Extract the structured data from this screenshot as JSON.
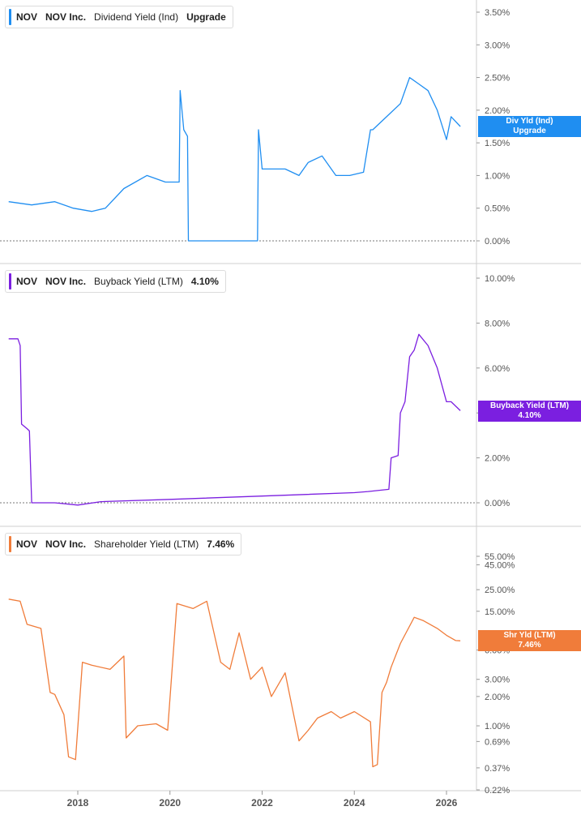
{
  "panels": [
    {
      "ticker": "NOV",
      "company": "NOV Inc.",
      "metric": "Dividend Yield (Ind)",
      "value": "Upgrade",
      "color": "#1f8ef1",
      "tag_line1": "Div Yld (Ind)",
      "tag_line2": "Upgrade"
    },
    {
      "ticker": "NOV",
      "company": "NOV Inc.",
      "metric": "Buyback Yield (LTM)",
      "value": "4.10%",
      "color": "#7b1fe0",
      "tag_line1": "Buyback Yield (LTM)",
      "tag_line2": "4.10%"
    },
    {
      "ticker": "NOV",
      "company": "NOV Inc.",
      "metric": "Shareholder Yield (LTM)",
      "value": "7.46%",
      "color": "#f07c3a",
      "tag_line1": "Shr Yld (LTM)",
      "tag_line2": "7.46%"
    }
  ],
  "x_ticks": [
    "2018",
    "2020",
    "2022",
    "2024",
    "2026"
  ],
  "chart_data": [
    {
      "type": "line",
      "title": "NOV Inc. Dividend Yield (Ind)",
      "series": [
        {
          "name": "Div Yld (Ind)",
          "color": "#1f8ef1",
          "x": [
            2016.5,
            2017.0,
            2017.5,
            2017.9,
            2018.3,
            2018.6,
            2019.0,
            2019.5,
            2019.9,
            2020.2,
            2020.22,
            2020.3,
            2020.38,
            2020.4,
            2021.9,
            2021.92,
            2022.0,
            2022.3,
            2022.5,
            2022.8,
            2023.0,
            2023.3,
            2023.6,
            2023.9,
            2024.2,
            2024.35,
            2024.4,
            2024.7,
            2025.0,
            2025.2,
            2025.4,
            2025.6,
            2025.8,
            2026.0,
            2026.1,
            2026.3
          ],
          "y": [
            0.6,
            0.55,
            0.6,
            0.5,
            0.45,
            0.5,
            0.8,
            1.0,
            0.9,
            0.9,
            2.3,
            1.7,
            1.6,
            0.0,
            0.0,
            1.7,
            1.1,
            1.1,
            1.1,
            1.0,
            1.2,
            1.3,
            1.0,
            1.0,
            1.05,
            1.7,
            1.7,
            1.9,
            2.1,
            2.5,
            2.4,
            2.3,
            2.0,
            1.55,
            1.9,
            1.75
          ]
        }
      ],
      "y_ticks": [
        "0.00%",
        "0.50%",
        "1.00%",
        "1.50%",
        "2.00%",
        "2.50%",
        "3.00%",
        "3.50%"
      ],
      "ylim": [
        0,
        3.55
      ]
    },
    {
      "type": "line",
      "title": "NOV Inc. Buyback Yield (LTM)",
      "series": [
        {
          "name": "Buyback Yield (LTM)",
          "color": "#7b1fe0",
          "x": [
            2016.5,
            2016.7,
            2016.75,
            2016.78,
            2016.9,
            2016.95,
            2017.0,
            2017.5,
            2018.0,
            2018.5,
            2020.0,
            2022.0,
            2024.0,
            2024.3,
            2024.75,
            2024.8,
            2024.95,
            2025.0,
            2025.1,
            2025.2,
            2025.3,
            2025.4,
            2025.6,
            2025.8,
            2026.0,
            2026.1,
            2026.3
          ],
          "y": [
            7.3,
            7.3,
            7.0,
            3.5,
            3.3,
            3.2,
            0.0,
            0.0,
            -0.1,
            0.05,
            0.15,
            0.3,
            0.45,
            0.5,
            0.6,
            2.0,
            2.1,
            4.0,
            4.5,
            6.5,
            6.8,
            7.5,
            7.0,
            6.0,
            4.5,
            4.5,
            4.1
          ]
        }
      ],
      "y_ticks": [
        "0.00%",
        "2.00%",
        "4.00%",
        "6.00%",
        "8.00%",
        "10.00%"
      ],
      "ylim": [
        0,
        10
      ]
    },
    {
      "type": "line",
      "title": "NOV Inc. Shareholder Yield (LTM)",
      "scale": "log",
      "series": [
        {
          "name": "Shr Yld (LTM)",
          "color": "#f07c3a",
          "x": [
            2016.5,
            2016.75,
            2016.9,
            2017.2,
            2017.4,
            2017.5,
            2017.7,
            2017.8,
            2017.95,
            2018.1,
            2018.3,
            2018.7,
            2019.0,
            2019.05,
            2019.3,
            2019.7,
            2019.95,
            2020.15,
            2020.5,
            2020.8,
            2021.1,
            2021.3,
            2021.5,
            2021.75,
            2022.0,
            2022.2,
            2022.5,
            2022.8,
            2023.0,
            2023.2,
            2023.5,
            2023.7,
            2024.0,
            2024.35,
            2024.4,
            2024.5,
            2024.6,
            2024.7,
            2024.8,
            2025.0,
            2025.3,
            2025.5,
            2025.8,
            2026.0,
            2026.2,
            2026.3
          ],
          "y": [
            20,
            19,
            11,
            10,
            2.2,
            2.1,
            1.3,
            0.48,
            0.45,
            4.5,
            4.2,
            3.8,
            5.2,
            0.75,
            1.0,
            1.05,
            0.9,
            18,
            16,
            19,
            4.5,
            3.8,
            9.0,
            3.0,
            4.0,
            2.0,
            3.5,
            0.7,
            0.9,
            1.2,
            1.4,
            1.2,
            1.4,
            1.1,
            0.38,
            0.4,
            2.2,
            2.8,
            4.0,
            7.0,
            13,
            12,
            10,
            8.5,
            7.5,
            7.46
          ]
        }
      ],
      "y_ticks": [
        "0.22%",
        "0.37%",
        "0.69%",
        "1.00%",
        "2.00%",
        "3.00%",
        "6.00%",
        "15.00%",
        "25.00%",
        "45.00%",
        "55.00%"
      ],
      "ylim": [
        0.22,
        60
      ]
    }
  ]
}
